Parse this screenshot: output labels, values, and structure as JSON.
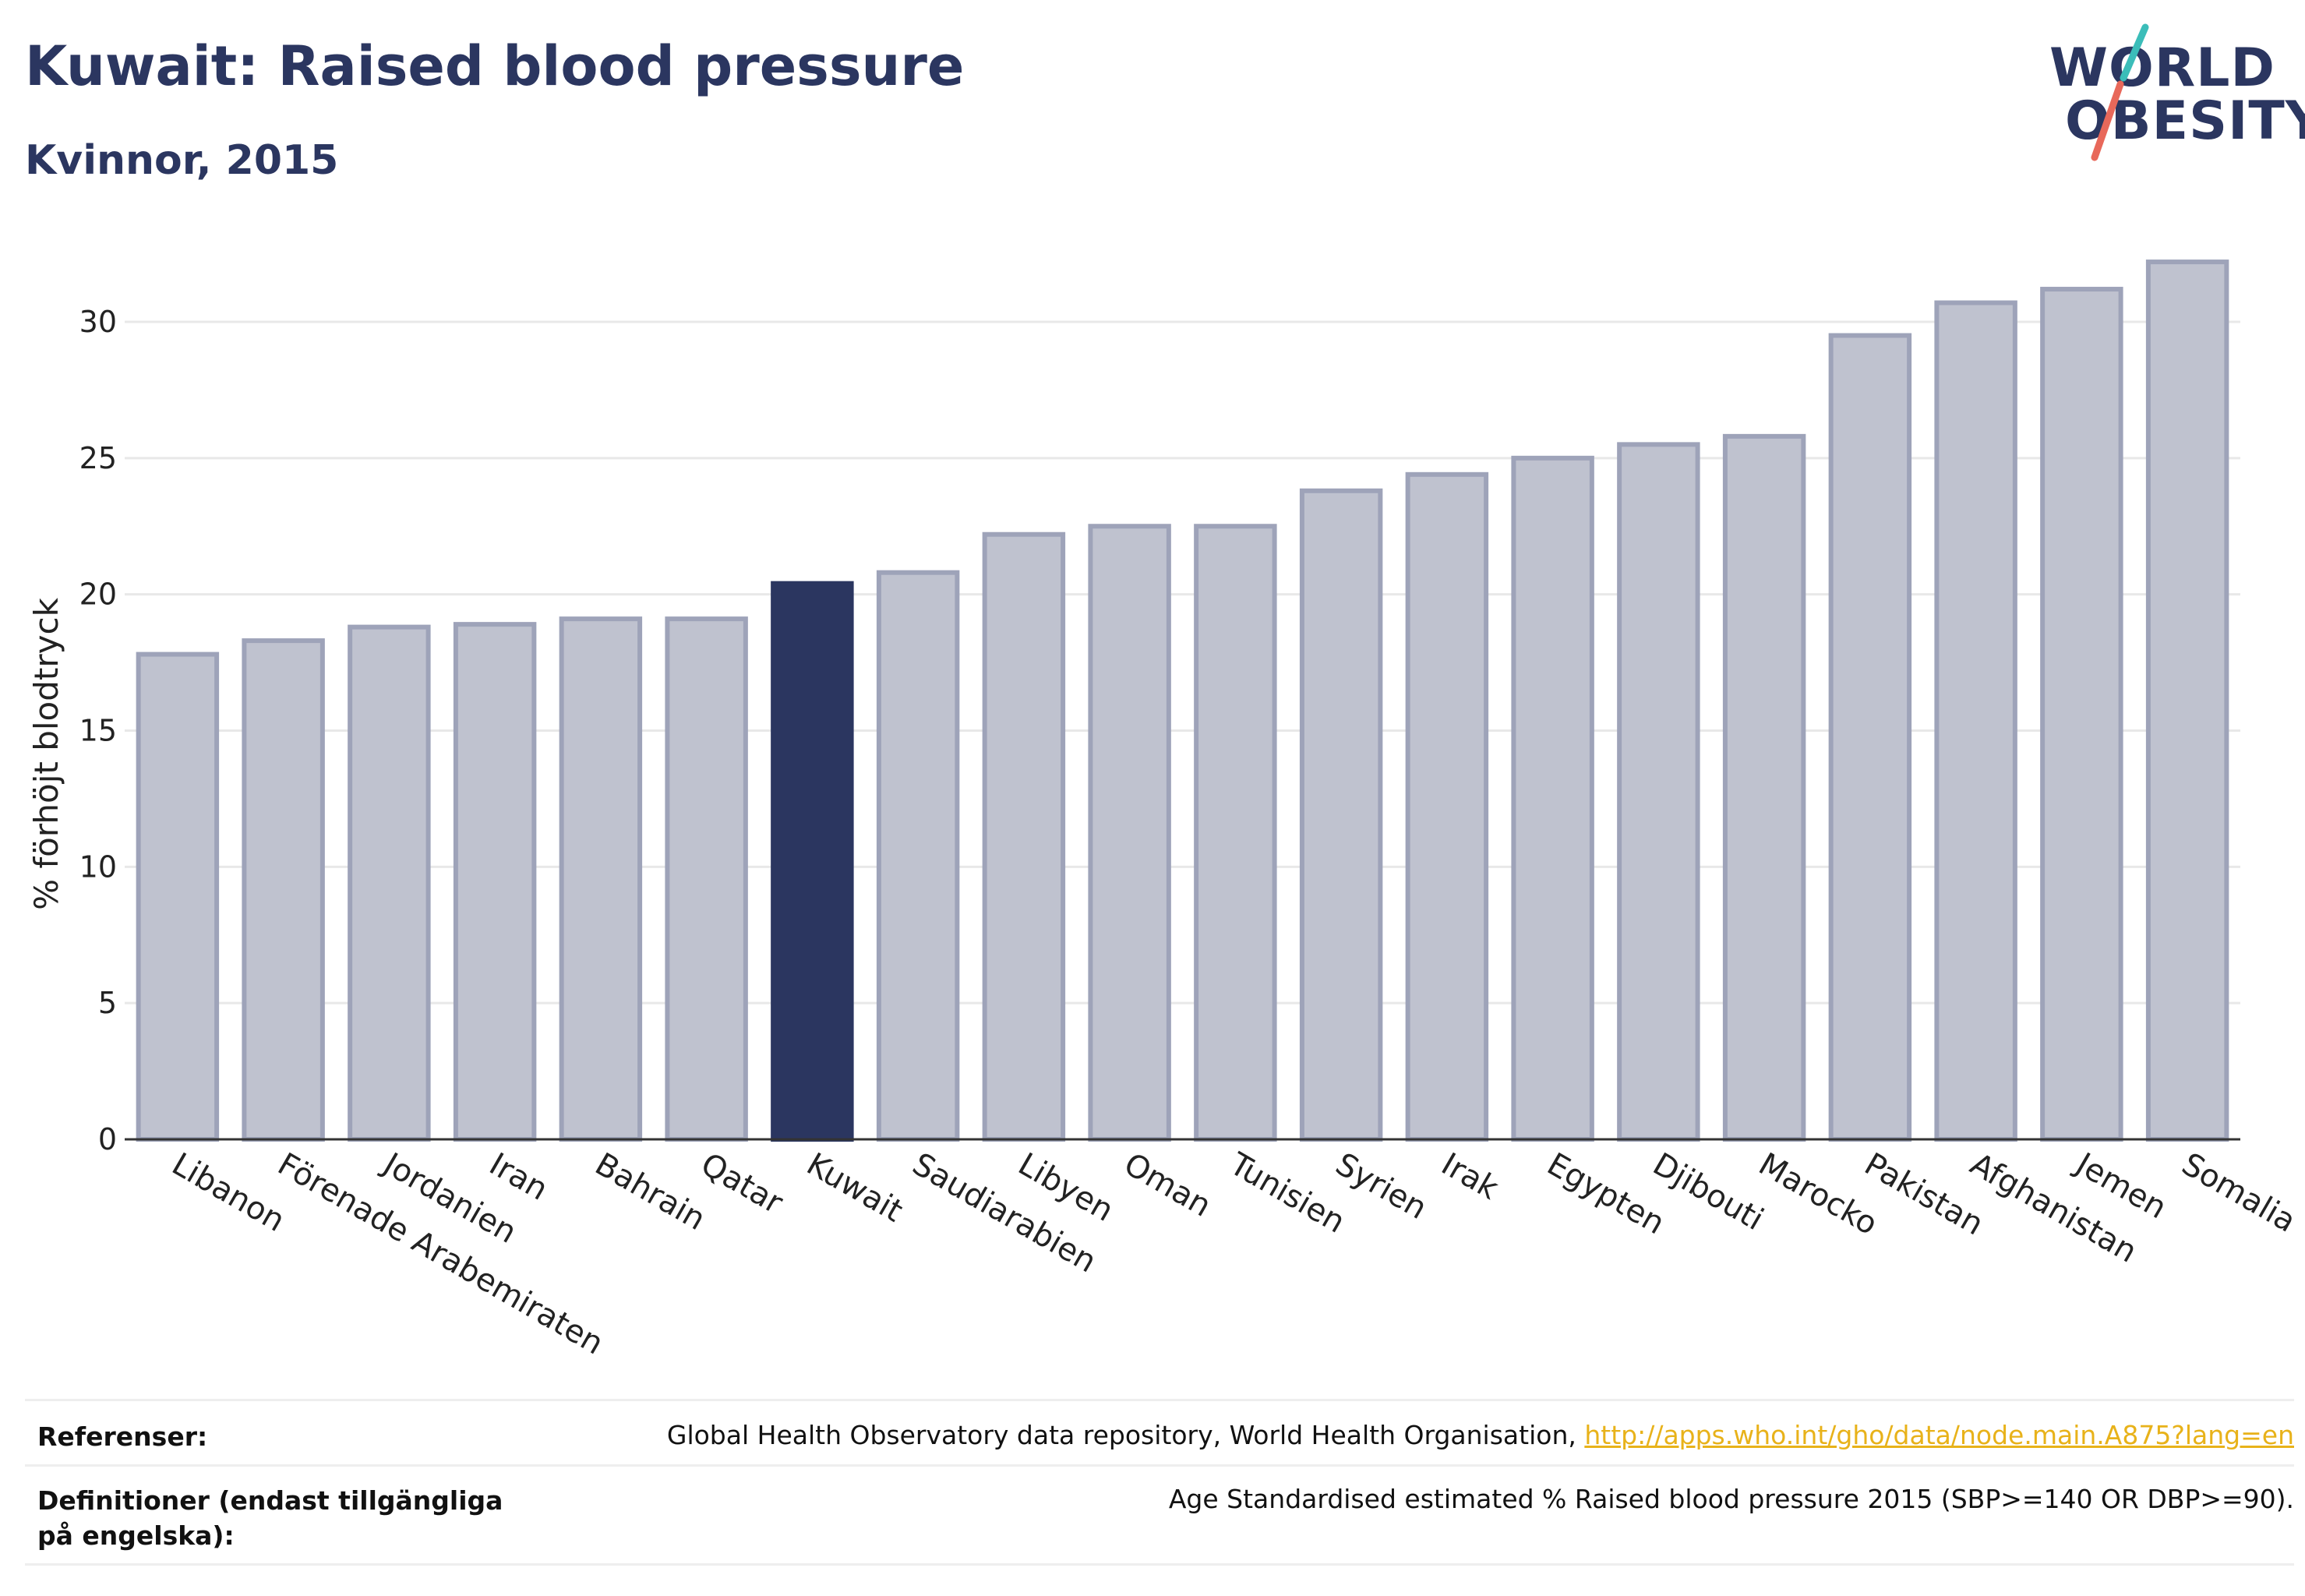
{
  "header": {
    "title": "Kuwait: Raised blood pressure",
    "subtitle": "Kvinnor, 2015"
  },
  "logo": {
    "line1": "WORLD",
    "line2": "OBESITY",
    "colors": {
      "text": "#2b3660",
      "slash_top": "#3bbdb9",
      "slash_bottom": "#e8685a"
    }
  },
  "chart_data": {
    "type": "bar",
    "ylabel": "% förhöjt blodtryck",
    "xlabel": "",
    "ylim": [
      0,
      33
    ],
    "yticks": [
      0,
      5,
      10,
      15,
      20,
      25,
      30
    ],
    "grid": true,
    "highlight": "Kuwait",
    "colors": {
      "bar": "#bfc2cf",
      "bar_edge": "#9ea3b9",
      "highlight": "#2b3660",
      "grid": "#e8e8e8",
      "axis": "#333333"
    },
    "categories": [
      "Libanon",
      "Förenade Arabemiraten",
      "Jordanien",
      "Iran",
      "Bahrain",
      "Qatar",
      "Kuwait",
      "Saudiarabien",
      "Libyen",
      "Oman",
      "Tunisien",
      "Syrien",
      "Irak",
      "Egypten",
      "Djibouti",
      "Marocko",
      "Pakistan",
      "Afghanistan",
      "Jemen",
      "Somalia"
    ],
    "values": [
      17.8,
      18.3,
      18.8,
      18.9,
      19.1,
      19.1,
      20.4,
      20.8,
      22.2,
      22.5,
      22.5,
      23.8,
      24.4,
      25.0,
      25.5,
      25.8,
      29.5,
      30.7,
      31.2,
      32.2
    ]
  },
  "footer": {
    "references_label": "Referenser:",
    "references_text": "Global Health Observatory data repository, World Health Organisation, ",
    "references_link": "http://apps.who.int/gho/data/node.main.A875?lang=en",
    "definitions_label": "Definitioner (endast tillgängliga på engelska):",
    "definitions_text": "Age Standardised estimated % Raised blood pressure 2015 (SBP>=140 OR DBP>=90)."
  }
}
